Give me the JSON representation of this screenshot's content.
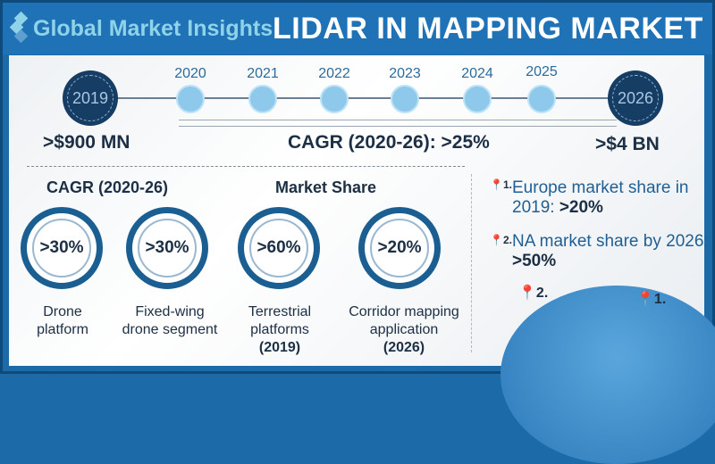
{
  "header": {
    "logo": "Global Market Insights",
    "title": "LIDAR IN MAPPING MARKET"
  },
  "timeline": {
    "start_year": "2019",
    "years": [
      "2020",
      "2021",
      "2022",
      "2023",
      "2024",
      "2025"
    ],
    "end_year": "2026",
    "start_value": ">$900 MN",
    "cagr": "CAGR (2020-26): >25%",
    "end_value": ">$4 BN"
  },
  "segments": {
    "cagr_heading": "CAGR (2020-26)",
    "share_heading": "Market Share",
    "items": [
      {
        "value": ">30%",
        "label": "Drone platform"
      },
      {
        "value": ">30%",
        "label": "Fixed-wing drone segment"
      },
      {
        "value": ">60%",
        "label": "Terrestrial platforms",
        "year": "(2019)"
      },
      {
        "value": ">20%",
        "label": "Corridor mapping application",
        "year": "(2026)"
      }
    ]
  },
  "regions": [
    {
      "num": "1.",
      "text": "Europe market share in 2019:",
      "value": ">20%"
    },
    {
      "num": "2.",
      "text": "NA market share by 2026:",
      "value": ">50%"
    }
  ],
  "colors": {
    "header": "#1f72b6",
    "dark": "#163d63",
    "accent": "#8ec9ec"
  }
}
